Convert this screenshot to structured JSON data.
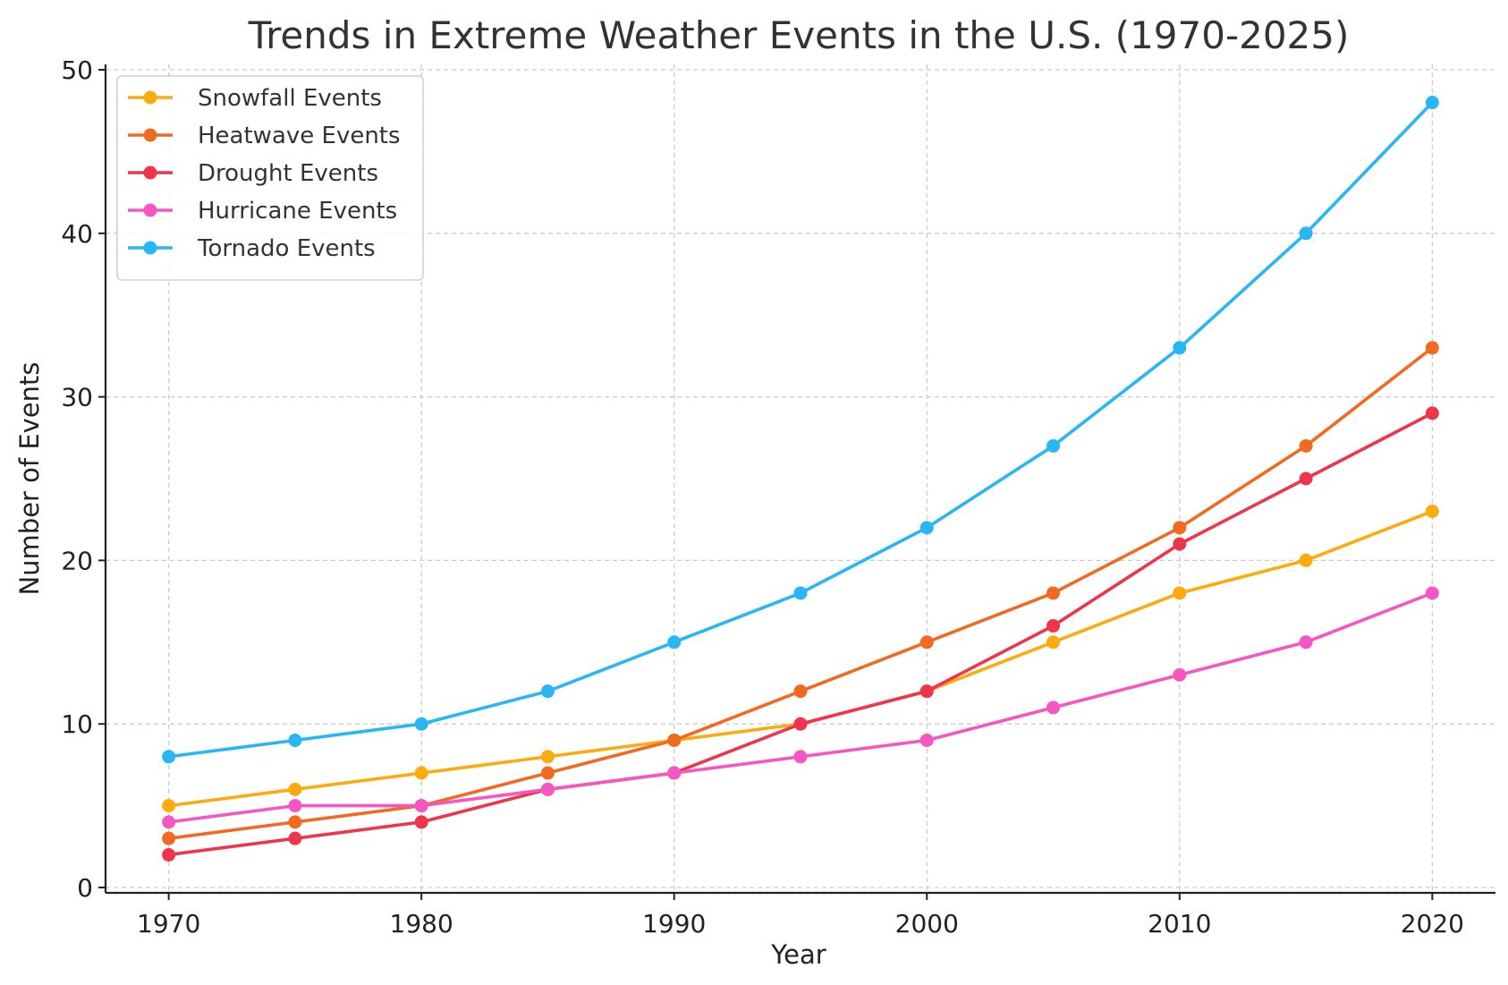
{
  "chart_data": {
    "type": "line",
    "title": "Trends in Extreme Weather Events in the U.S. (1970-2025)",
    "xlabel": "Year",
    "ylabel": "Number of Events",
    "x": [
      1970,
      1975,
      1980,
      1985,
      1990,
      1995,
      2000,
      2005,
      2010,
      2015,
      2020
    ],
    "xlim": [
      1967.5,
      2022.5
    ],
    "ylim": [
      0,
      50
    ],
    "xticks": [
      1970,
      1980,
      1990,
      2000,
      2010,
      2020
    ],
    "yticks": [
      0,
      10,
      20,
      30,
      40,
      50
    ],
    "grid": true,
    "legend_position": "top-left",
    "series": [
      {
        "name": "Snowfall Events",
        "color": "#fbab0e",
        "values": [
          5,
          6,
          7,
          8,
          9,
          10,
          12,
          15,
          18,
          20,
          23
        ]
      },
      {
        "name": "Heatwave Events",
        "color": "#f26a22",
        "values": [
          3,
          4,
          5,
          7,
          9,
          12,
          15,
          18,
          22,
          27,
          33
        ]
      },
      {
        "name": "Drought Events",
        "color": "#ee354b",
        "values": [
          2,
          3,
          4,
          6,
          7,
          10,
          12,
          16,
          21,
          25,
          29
        ]
      },
      {
        "name": "Hurricane Events",
        "color": "#f556c2",
        "values": [
          4,
          5,
          5,
          6,
          7,
          8,
          9,
          11,
          13,
          15,
          18
        ]
      },
      {
        "name": "Tornado Events",
        "color": "#29b6f4",
        "values": [
          8,
          9,
          10,
          12,
          15,
          18,
          22,
          27,
          33,
          40,
          48
        ]
      }
    ]
  }
}
